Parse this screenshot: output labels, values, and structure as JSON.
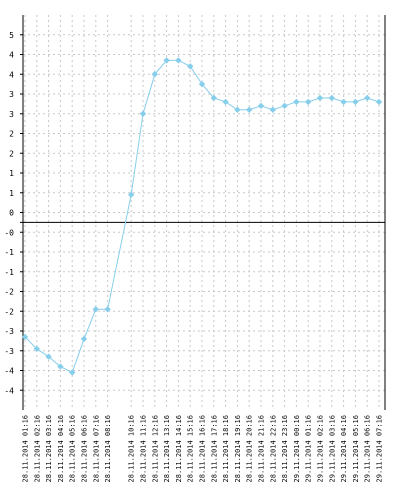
{
  "chart_data": {
    "type": "line",
    "y_tick_labels": [
      "5",
      "4",
      "4",
      "3",
      "3",
      "2",
      "2",
      "1",
      "1",
      "0",
      "-0",
      "-1",
      "-1",
      "-2",
      "-2",
      "-3",
      "-3",
      "-4",
      "-4"
    ],
    "y_tick_values": [
      5,
      4.5,
      4,
      3.5,
      3,
      2.5,
      2,
      1.5,
      1,
      0.5,
      0,
      -0.5,
      -1,
      -1.5,
      -2,
      -2.5,
      -3,
      -3.5,
      -4
    ],
    "ylim": [
      -4.5,
      5.5
    ],
    "reference_line": 0.25,
    "x_labels": [
      "28.11.2014 01:16",
      "28.11.2014 02:16",
      "28.11.2014 03:16",
      "28.11.2014 04:16",
      "28.11.2014 05:16",
      "28.11.2014 06:16",
      "28.11.2014 07:16",
      "28.11.2014 08:16",
      "28.11.2014 10:16",
      "28.11.2014 11:16",
      "28.11.2014 12:16",
      "28.11.2014 13:16",
      "28.11.2014 14:16",
      "28.11.2014 15:16",
      "28.11.2014 16:16",
      "28.11.2014 17:16",
      "28.11.2014 18:16",
      "28.11.2014 19:16",
      "28.11.2014 20:16",
      "28.11.2014 21:16",
      "28.11.2014 22:16",
      "28.11.2014 23:16",
      "29.11.2014 00:16",
      "29.11.2014 01:16",
      "29.11.2014 02:16",
      "29.11.2014 03:16",
      "29.11.2014 04:16",
      "29.11.2014 05:16",
      "29.11.2014 06:16",
      "29.11.2014 07:16"
    ],
    "x_index": [
      0,
      1,
      2,
      3,
      4,
      5,
      6,
      7,
      9,
      10,
      11,
      12,
      13,
      14,
      15,
      16,
      17,
      18,
      19,
      20,
      21,
      22,
      23,
      24,
      25,
      26,
      27,
      28,
      29,
      30
    ],
    "series": [
      {
        "values": [
          -2.65,
          -2.95,
          -3.15,
          -3.4,
          -3.55,
          -2.7,
          -1.95,
          -1.95,
          0.95,
          3.0,
          4.0,
          4.35,
          4.35,
          4.2,
          3.75,
          3.4,
          3.3,
          3.1,
          3.1,
          3.2,
          3.1,
          3.2,
          3.3,
          3.3,
          3.4,
          3.4,
          3.3,
          3.3,
          3.4,
          3.3
        ],
        "color": "#87ceeb"
      }
    ],
    "grid": true,
    "legend": "none"
  }
}
